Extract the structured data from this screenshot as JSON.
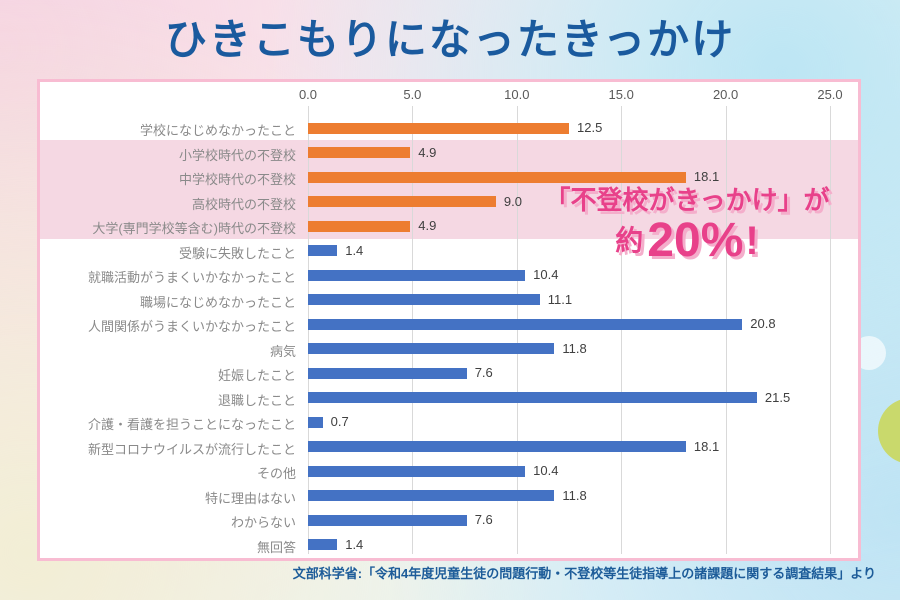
{
  "page": {
    "title": "ひきこもりになったきっかけ",
    "source_note": "文部科学省:「令和4年度児童生徒の問題行動・不登校等生徒指導上の諸課題に関する調査結果」より"
  },
  "annotation": {
    "line1": "「不登校がきっかけ」が",
    "line2_prefix": "約",
    "line2_value": "20%",
    "line2_suffix": "!",
    "color": "#e8418a"
  },
  "chart_data": {
    "type": "bar",
    "orientation": "horizontal",
    "title": "ひきこもりになったきっかけ",
    "xlim": [
      0,
      25
    ],
    "x_ticks": [
      "0.0",
      "5.0",
      "10.0",
      "15.0",
      "20.0",
      "25.0"
    ],
    "grid": true,
    "categories": [
      "学校になじめなかったこと",
      "小学校時代の不登校",
      "中学校時代の不登校",
      "高校時代の不登校",
      "大学(専門学校等含む)時代の不登校",
      "受験に失敗したこと",
      "就職活動がうまくいかなかったこと",
      "職場になじめなかったこと",
      "人間関係がうまくいかなかったこと",
      "病気",
      "妊娠したこと",
      "退職したこと",
      "介護・看護を担うことになったこと",
      "新型コロナウイルスが流行したこと",
      "その他",
      "特に理由はない",
      "わからない",
      "無回答"
    ],
    "values": [
      12.5,
      4.9,
      18.1,
      9.0,
      4.9,
      1.4,
      10.4,
      11.1,
      20.8,
      11.8,
      7.6,
      21.5,
      0.7,
      18.1,
      10.4,
      11.8,
      7.6,
      1.4
    ],
    "value_labels": [
      "12.5",
      "4.9",
      "18.1",
      "9.0",
      "4.9",
      "1.4",
      "10.4",
      "11.1",
      "20.8",
      "11.8",
      "7.6",
      "21.5",
      "0.7",
      "18.1",
      "10.4",
      "11.8",
      "7.6",
      "1.4"
    ],
    "groups": [
      "school",
      "school",
      "school",
      "school",
      "school",
      "other",
      "other",
      "other",
      "other",
      "other",
      "other",
      "other",
      "other",
      "other",
      "other",
      "other",
      "other",
      "other"
    ],
    "colors": {
      "school": "#ED7D31",
      "other": "#4472C4"
    },
    "highlight_band": {
      "from_index": 1,
      "to_index": 4,
      "color": "#f5d8e3"
    },
    "legend": null
  }
}
